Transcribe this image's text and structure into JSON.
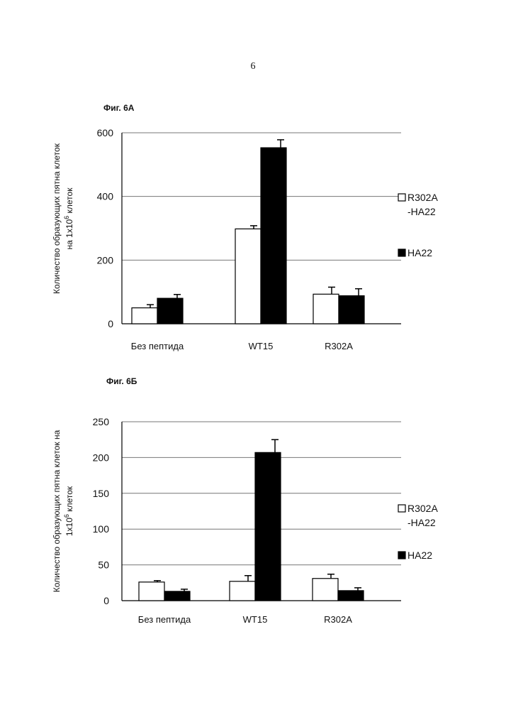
{
  "page": {
    "number": "6"
  },
  "chart_data": [
    {
      "type": "bar",
      "title": "Фиг. 6A",
      "ylabel_lines": [
        "Количество образующих пятна клеток",
        "на 1x10",
        "6",
        " клеток"
      ],
      "ylabel": "Количество образующих пятна клеток на 1x10^6 клеток",
      "xlabel": "",
      "categories": [
        "Без пептида",
        "WT15",
        "R302A"
      ],
      "series": [
        {
          "name": "R302A -HA22",
          "legend_lines": [
            "R302A",
            "-HA22"
          ],
          "color": "#ffffff",
          "values": [
            50,
            298,
            93
          ],
          "errors": [
            10,
            10,
            22
          ]
        },
        {
          "name": "HA22",
          "legend_lines": [
            "HA22"
          ],
          "color": "#000000",
          "values": [
            80,
            553,
            88
          ],
          "errors": [
            12,
            25,
            22
          ]
        }
      ],
      "ylim": [
        0,
        600
      ],
      "yticks": [
        0,
        200,
        400,
        600
      ],
      "grid": true,
      "legend": "right"
    },
    {
      "type": "bar",
      "title": "Фиг. 6Б",
      "ylabel_lines": [
        "Количество образующих пятна клеток на",
        "1x10",
        "6",
        " клеток"
      ],
      "ylabel": "Количество образующих пятна клеток на 1x10^6 клеток",
      "xlabel": "",
      "categories": [
        "Без пептида",
        "WT15",
        "R302A"
      ],
      "series": [
        {
          "name": "R302A -HA22",
          "legend_lines": [
            "R302A",
            "-HA22"
          ],
          "color": "#ffffff",
          "values": [
            26,
            27,
            31
          ],
          "errors": [
            2,
            8,
            6
          ]
        },
        {
          "name": "HA22",
          "legend_lines": [
            "HA22"
          ],
          "color": "#000000",
          "values": [
            13,
            207,
            14
          ],
          "errors": [
            3,
            18,
            4
          ]
        }
      ],
      "ylim": [
        0,
        250
      ],
      "yticks": [
        0,
        50,
        100,
        150,
        200,
        250
      ],
      "grid": true,
      "legend": "right"
    }
  ]
}
